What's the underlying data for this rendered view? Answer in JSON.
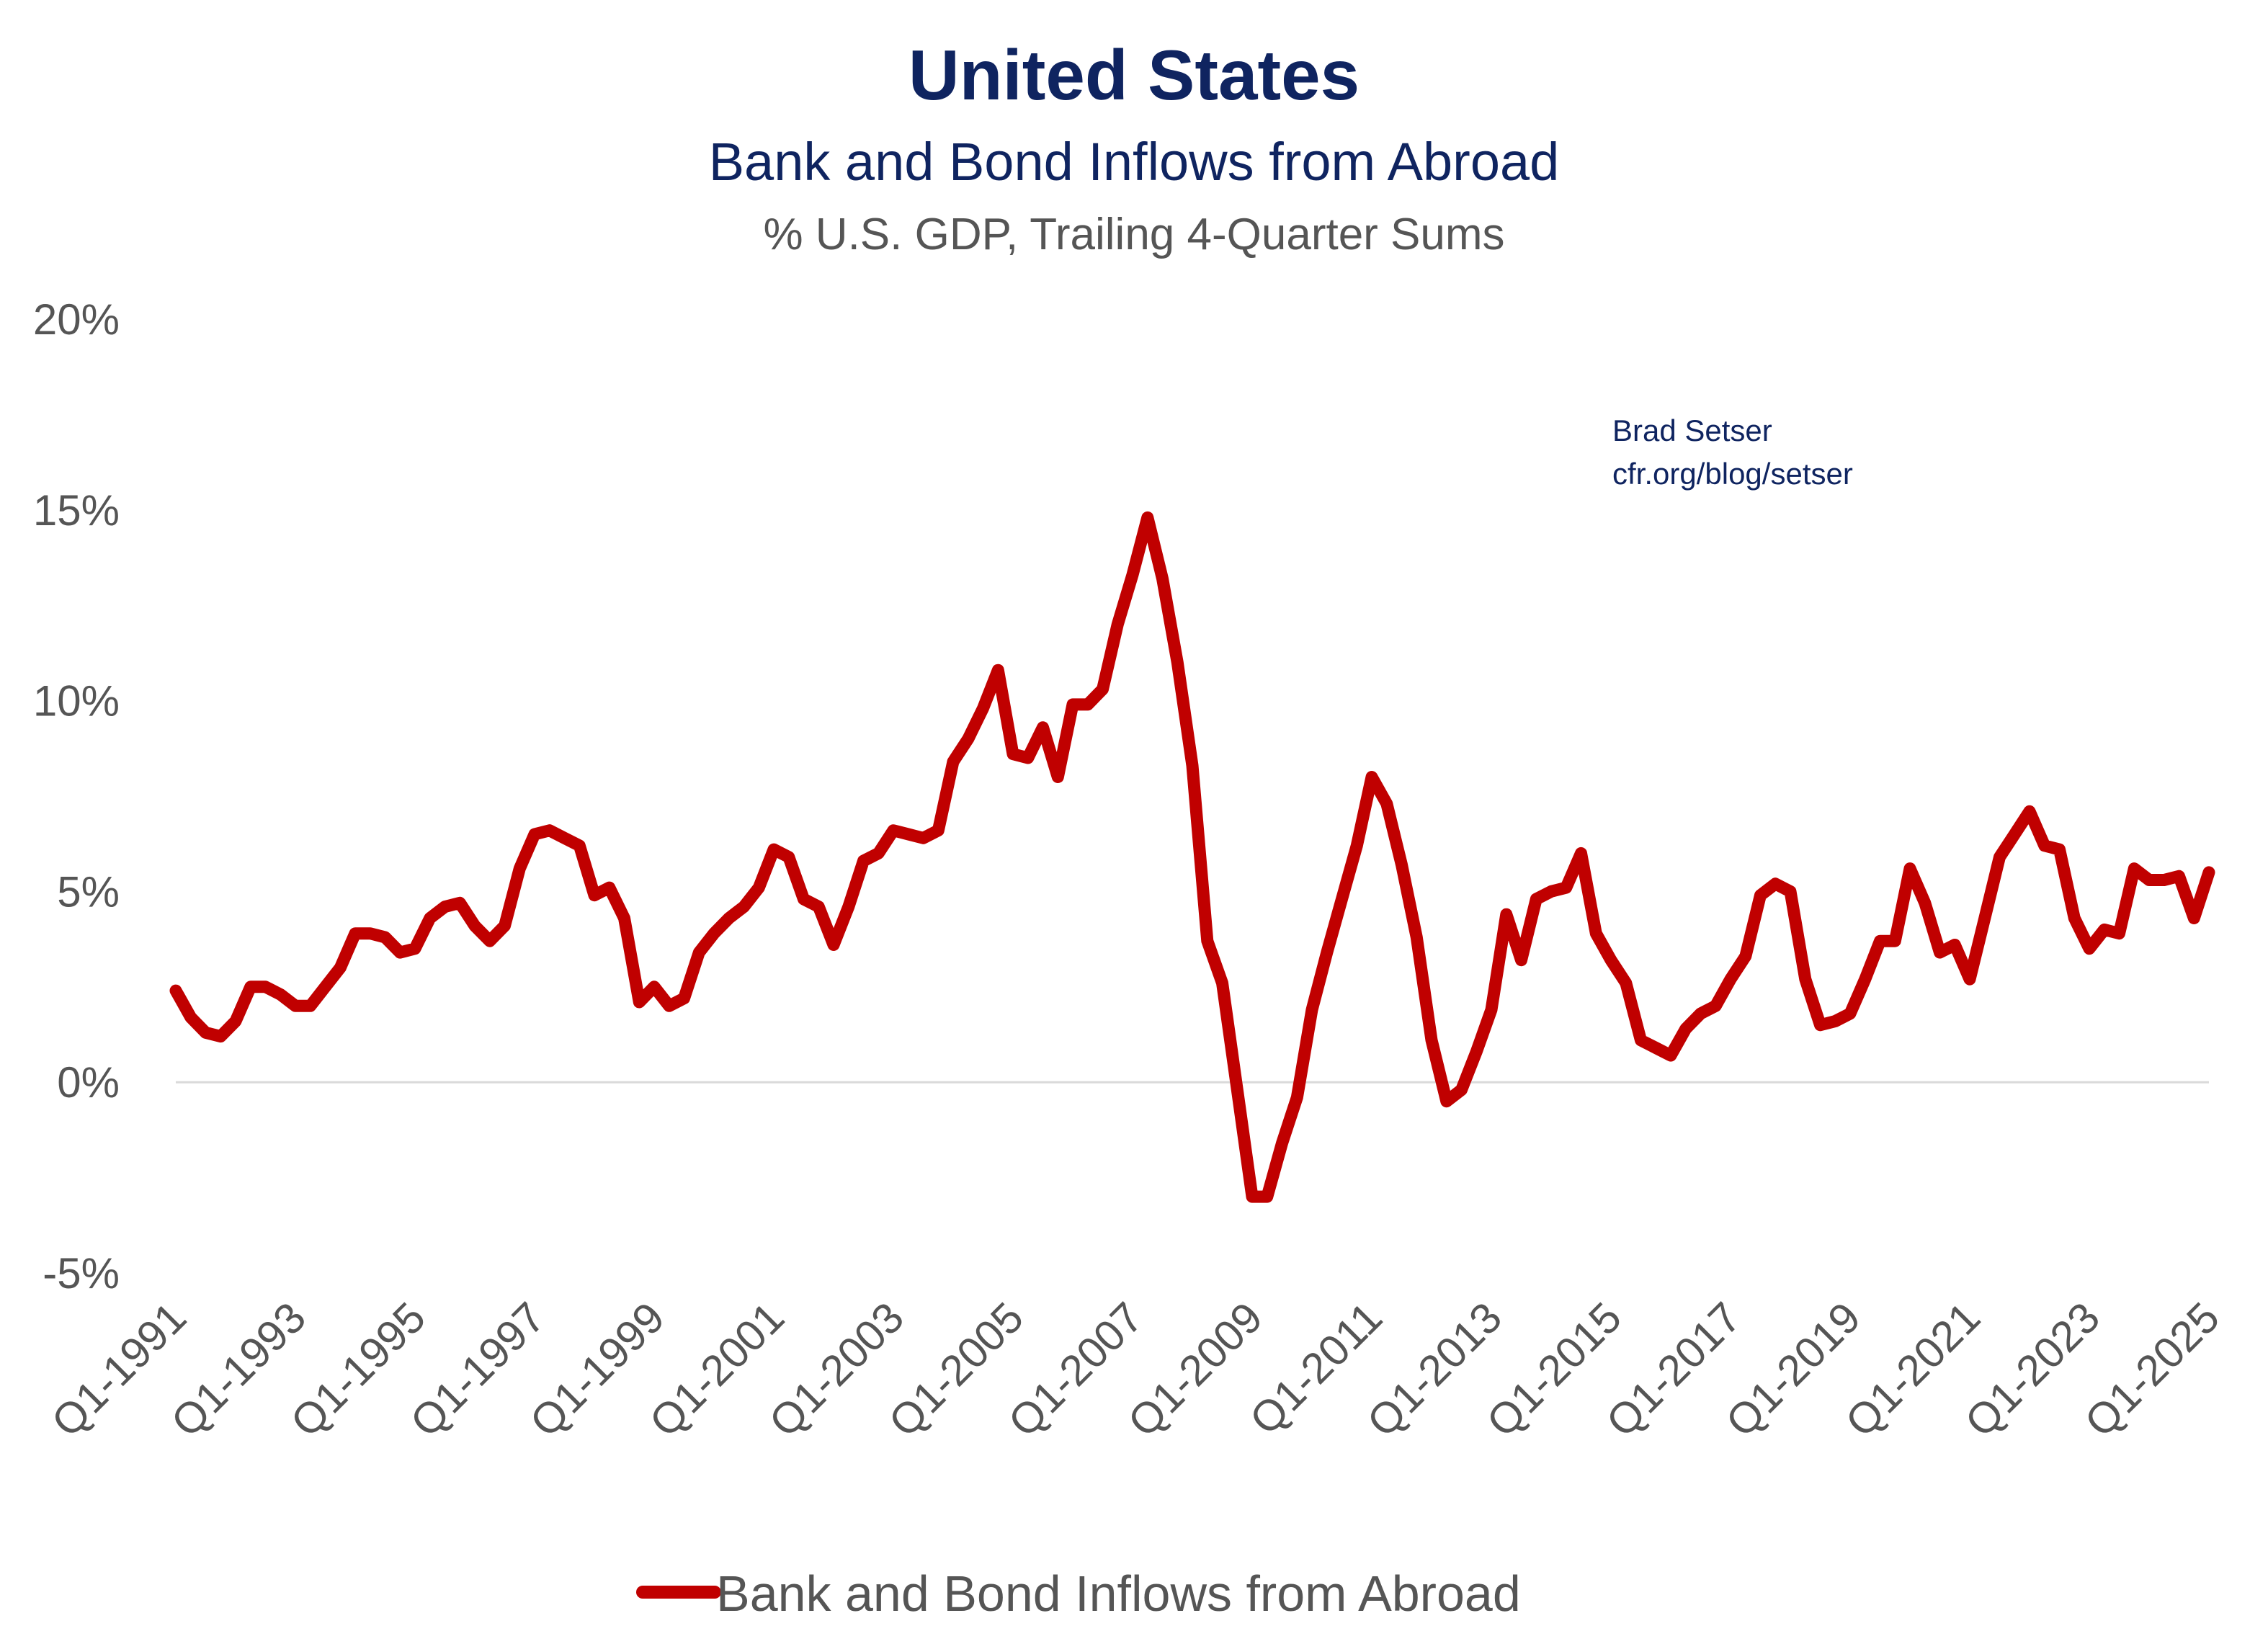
{
  "header": {
    "title": "United States",
    "subtitle": "Bank and Bond Inflows from Abroad",
    "units": "% U.S. GDP, Trailing 4-Quarter Sums"
  },
  "source": {
    "line1": "Brad Setser",
    "line2": "cfr.org/blog/setser"
  },
  "colors": {
    "line": "#c00000",
    "title": "#0f2460",
    "text": "#555555",
    "zero": "#d9d9d9"
  },
  "chart_data": {
    "type": "line",
    "title": "United States",
    "subtitle": "Bank and Bond Inflows from Abroad",
    "ylabel": "% U.S. GDP, Trailing 4-Quarter Sums",
    "ylim": [
      -5,
      20
    ],
    "yticks": [
      -5,
      0,
      5,
      10,
      15,
      20
    ],
    "ytick_labels": [
      "-5%",
      "0%",
      "5%",
      "10%",
      "15%",
      "20%"
    ],
    "x_start": "Q1-1991",
    "xtick_labels": [
      "Q1-1991",
      "Q1-1993",
      "Q1-1995",
      "Q1-1997",
      "Q1-1999",
      "Q1-2001",
      "Q1-2003",
      "Q1-2005",
      "Q1-2007",
      "Q1-2009",
      "Q1-2011",
      "Q1-2013",
      "Q1-2015",
      "Q1-2017",
      "Q1-2019",
      "Q1-2021",
      "Q1-2023",
      "Q1-2025"
    ],
    "xtick_step_quarters": 8,
    "grid": false,
    "legend_position": "bottom",
    "series": [
      {
        "name": "Bank and Bond Inflows from Abroad",
        "values": [
          2.4,
          1.7,
          1.3,
          1.2,
          1.6,
          2.5,
          2.5,
          2.3,
          2.0,
          2.0,
          2.5,
          3.0,
          3.9,
          3.9,
          3.8,
          3.4,
          3.5,
          4.3,
          4.6,
          4.7,
          4.1,
          3.7,
          4.1,
          5.6,
          6.5,
          6.6,
          6.4,
          6.2,
          4.9,
          5.1,
          4.3,
          2.1,
          2.5,
          2.0,
          2.2,
          3.4,
          3.9,
          4.3,
          4.6,
          5.1,
          6.1,
          5.9,
          4.8,
          4.6,
          3.6,
          4.6,
          5.8,
          6.0,
          6.6,
          6.5,
          6.4,
          6.6,
          8.4,
          9.0,
          9.8,
          10.8,
          8.6,
          8.5,
          9.3,
          8.0,
          9.9,
          9.9,
          10.3,
          12.0,
          13.3,
          14.8,
          13.2,
          11.0,
          8.3,
          3.7,
          2.6,
          -0.2,
          -3.0,
          -3.0,
          -1.6,
          -0.4,
          1.9,
          3.4,
          4.8,
          6.2,
          8.0,
          7.3,
          5.7,
          3.8,
          1.1,
          -0.5,
          -0.2,
          0.8,
          1.9,
          4.4,
          3.2,
          4.8,
          5.0,
          5.1,
          6.0,
          3.9,
          3.2,
          2.6,
          1.1,
          0.9,
          0.7,
          1.4,
          1.8,
          2.0,
          2.7,
          3.3,
          4.9,
          5.2,
          5.0,
          2.7,
          1.5,
          1.6,
          1.8,
          2.7,
          3.7,
          3.7,
          5.6,
          4.7,
          3.4,
          3.6,
          2.7,
          4.3,
          5.9,
          6.5,
          7.1,
          6.2,
          6.1,
          4.3,
          3.5,
          4.0,
          3.9,
          5.6,
          5.3,
          5.3,
          5.4,
          4.3,
          5.5
        ]
      }
    ]
  }
}
